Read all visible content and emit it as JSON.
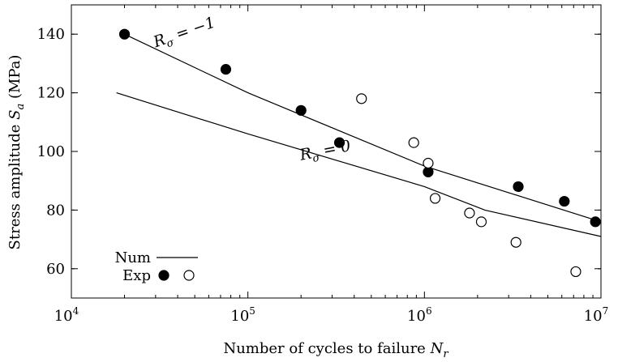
{
  "chart_data": {
    "type": "scatter",
    "title": "",
    "xlabel": "Number of cycles to failure N_r",
    "ylabel": "Stress amplitude S_a (MPa)",
    "xscale": "log",
    "xlim": [
      10000,
      10000000
    ],
    "ylim": [
      50,
      150
    ],
    "x_ticks": [
      {
        "value": 10000,
        "base": "10",
        "exp": "4"
      },
      {
        "value": 100000,
        "base": "10",
        "exp": "5"
      },
      {
        "value": 1000000,
        "base": "10",
        "exp": "6"
      },
      {
        "value": 10000000,
        "base": "10",
        "exp": "7"
      }
    ],
    "y_ticks": [
      "60",
      "80",
      "100",
      "120",
      "140"
    ],
    "grid": false,
    "legend": {
      "placement": "bottom-left",
      "num_label": "Num",
      "exp_label": "Exp"
    },
    "curve_labels": [
      {
        "series": "Numerical (R_sigma = -1)",
        "text_main": "R",
        "text_sub": "σ",
        "text_rest": " = −1",
        "at": [
          30000,
          135.5
        ],
        "angle": -19
      },
      {
        "series": "Numerical (R_sigma = 0)",
        "text_main": "R",
        "text_sub": "σ",
        "text_rest": " = 0",
        "at": [
          200000,
          97
        ],
        "angle": -11
      }
    ],
    "series": [
      {
        "kind": "line",
        "points": [
          [
            20000,
            140
          ],
          [
            100000,
            120
          ],
          [
            1000000,
            95
          ],
          [
            10000000,
            76
          ]
        ]
      },
      {
        "kind": "line",
        "points": [
          [
            18000,
            120
          ],
          [
            100000,
            106
          ],
          [
            1000000,
            88
          ],
          [
            2200000,
            80
          ],
          [
            10000000,
            71
          ]
        ]
      },
      {
        "kind": "marker",
        "fill": "filled",
        "points": [
          [
            20000,
            140
          ],
          [
            75000,
            128
          ],
          [
            200000,
            114
          ],
          [
            330000,
            103
          ],
          [
            1050000,
            93
          ],
          [
            3400000,
            88
          ],
          [
            6200000,
            83
          ],
          [
            9300000,
            76
          ]
        ]
      },
      {
        "kind": "marker",
        "fill": "hollow",
        "points": [
          [
            440000,
            118
          ],
          [
            870000,
            103
          ],
          [
            1050000,
            96
          ],
          [
            1150000,
            84
          ],
          [
            1800000,
            79
          ],
          [
            2100000,
            76
          ],
          [
            3300000,
            69
          ],
          [
            7200000,
            59
          ]
        ]
      }
    ]
  }
}
